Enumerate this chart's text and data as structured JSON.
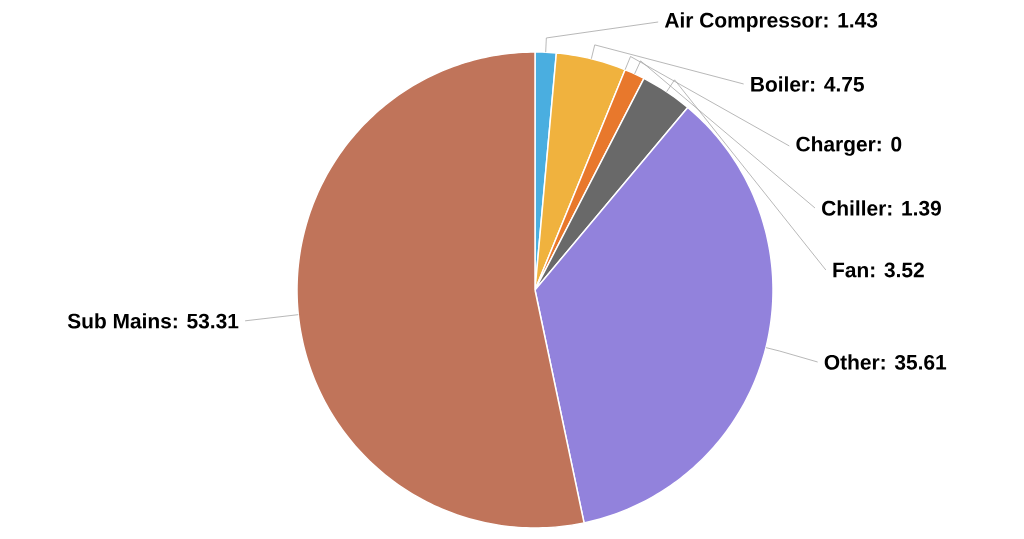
{
  "chart_data": {
    "type": "pie",
    "categories": [
      "Air Compressor",
      "Boiler",
      "Charger",
      "Chiller",
      "Fan",
      "Other",
      "Sub Mains"
    ],
    "values": [
      1.43,
      4.75,
      0,
      1.39,
      3.52,
      35.61,
      53.31
    ],
    "colors": [
      "#4aaee0",
      "#f0b23e",
      "#e8782c",
      "#e8782c",
      "#696969",
      "#9282dc",
      "#c0745a"
    ],
    "value_labels": [
      ": 1.43",
      ": 4.75",
      ": 0",
      ": 1.39",
      ": 3.52",
      ": 35.61",
      ": 53.31"
    ]
  }
}
